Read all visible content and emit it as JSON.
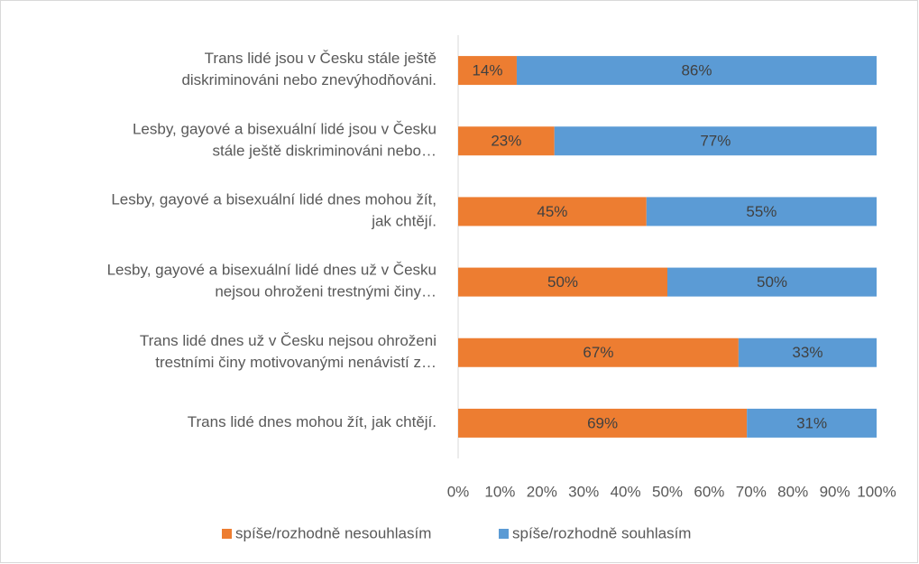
{
  "chart_data": {
    "type": "stacked-bar",
    "orientation": "horizontal",
    "categories": [
      "Trans lidé jsou v Česku stále ještě\ndiskriminováni nebo znevýhodňováni.",
      "Lesby, gayové a bisexuální lidé jsou v Česku\nstále ještě diskriminováni nebo…",
      "Lesby, gayové a bisexuální lidé dnes mohou žít,\njak chtějí.",
      "Lesby, gayové a bisexuální lidé dnes už v Česku\nnejsou ohroženi trestnými činy…",
      "Trans lidé dnes už v Česku nejsou ohroženi\ntrestními činy motivovanými nenávistí z…",
      "Trans lidé dnes mohou žít, jak chtějí."
    ],
    "series": [
      {
        "name": "spíše/rozhodně nesouhlasím",
        "color": "#ed7d31",
        "values": [
          14,
          23,
          45,
          50,
          67,
          69
        ],
        "value_labels": [
          "14%",
          "23%",
          "45%",
          "50%",
          "67%",
          "69%"
        ]
      },
      {
        "name": "spíše/rozhodně souhlasím",
        "color": "#5b9bd5",
        "values": [
          86,
          77,
          55,
          50,
          33,
          31
        ],
        "value_labels": [
          "86%",
          "77%",
          "55%",
          "50%",
          "33%",
          "31%"
        ]
      }
    ],
    "xlim": [
      0,
      100
    ],
    "xticks": [
      {
        "value": 0,
        "label": "0%"
      },
      {
        "value": 10,
        "label": "10%"
      },
      {
        "value": 20,
        "label": "20%"
      },
      {
        "value": 30,
        "label": "30%"
      },
      {
        "value": 40,
        "label": "40%"
      },
      {
        "value": 50,
        "label": "50%"
      },
      {
        "value": 60,
        "label": "60%"
      },
      {
        "value": 70,
        "label": "70%"
      },
      {
        "value": 80,
        "label": "80%"
      },
      {
        "value": 90,
        "label": "90%"
      },
      {
        "value": 100,
        "label": "100%"
      }
    ],
    "legend": "bottom"
  }
}
